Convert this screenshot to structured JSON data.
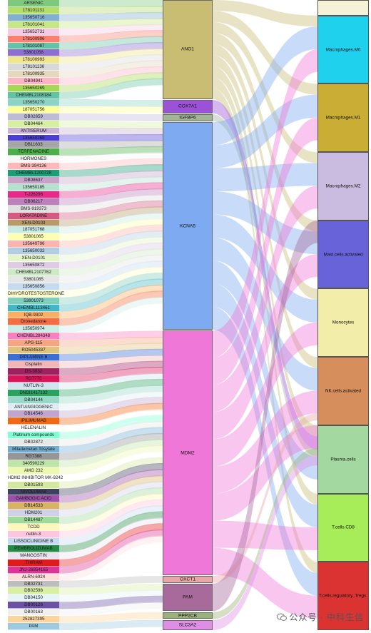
{
  "drugs": [
    {
      "label": "ARSENIC",
      "color": "#7fc97f"
    },
    {
      "label": "178101131",
      "color": "#b3de69"
    },
    {
      "label": "135650716",
      "color": "#80b1d3"
    },
    {
      "label": "178101041",
      "color": "#c6e784"
    },
    {
      "label": "135652731",
      "color": "#f4cae4"
    },
    {
      "label": "178100996",
      "color": "#fb8072"
    },
    {
      "label": "178101087",
      "color": "#66c2a5"
    },
    {
      "label": "53801058",
      "color": "#8e6fd1"
    },
    {
      "label": "178100993",
      "color": "#f0e68c"
    },
    {
      "label": "178101136",
      "color": "#d9d9d9"
    },
    {
      "label": "178100935",
      "color": "#e5d8bd"
    },
    {
      "label": "DB04941",
      "color": "#ffb3c6"
    },
    {
      "label": "135650269",
      "color": "#a6d854"
    },
    {
      "label": "CHEMBL2108184",
      "color": "#66c2a5"
    },
    {
      "label": "135650270",
      "color": "#8dd3c7"
    },
    {
      "label": "187051756",
      "color": "#ffff99"
    },
    {
      "label": "DB02659",
      "color": "#bebada"
    },
    {
      "label": "DB04464",
      "color": "#d4f0a0"
    },
    {
      "label": "ANTISERUM",
      "color": "#cab2d6"
    },
    {
      "label": "135650268",
      "color": "#4b3ed6"
    },
    {
      "label": "DB11633",
      "color": "#a6a6a6"
    },
    {
      "label": "TERFENADINE",
      "color": "#4daf4a"
    },
    {
      "label": "HORMONES",
      "color": "#f7f7f7"
    },
    {
      "label": "BMS-394136",
      "color": "#fdb9b9"
    },
    {
      "label": "CHEMBL1200728",
      "color": "#1b9e77"
    },
    {
      "label": "DB08637",
      "color": "#c8a2c8"
    },
    {
      "label": "135650185",
      "color": "#b3e2cd"
    },
    {
      "label": "T-226296",
      "color": "#e7298a"
    },
    {
      "label": "DB06217",
      "color": "#bc80bd"
    },
    {
      "label": "BMS-919373",
      "color": "#e0e0e0"
    },
    {
      "label": "LORATADINE",
      "color": "#d45a80"
    },
    {
      "label": "XEN-D0103",
      "color": "#b59a6a"
    },
    {
      "label": "187051768",
      "color": "#c7eae5"
    },
    {
      "label": "53801065",
      "color": "#ffffb3"
    },
    {
      "label": "135649796",
      "color": "#fbb4ae"
    },
    {
      "label": "135650032",
      "color": "#b3cde3"
    },
    {
      "label": "XEN-D0101",
      "color": "#e6f5c9"
    },
    {
      "label": "135650872",
      "color": "#decbe4"
    },
    {
      "label": "CHEMBL2107762",
      "color": "#ccebc5"
    },
    {
      "label": "53801085",
      "color": "#e6e6e6"
    },
    {
      "label": "135650856",
      "color": "#c6dbef"
    },
    {
      "label": "DIHYDROTESTOSTERONE",
      "color": "#ffffcc"
    },
    {
      "label": "53801073",
      "color": "#7fcdbb"
    },
    {
      "label": "CHEMBL113461",
      "color": "#41b6c4"
    },
    {
      "label": "IQB-9302",
      "color": "#fdae61"
    },
    {
      "label": "Dronedarone",
      "color": "#f46d43"
    },
    {
      "label": "135650974",
      "color": "#ccece6"
    },
    {
      "label": "CHEMBL284348",
      "color": "#f781bf"
    },
    {
      "label": "APG-115",
      "color": "#f4a582"
    },
    {
      "label": "RO5045337",
      "color": "#dfc27d"
    },
    {
      "label": "DIPLAMINE B",
      "color": "#3b6fd6"
    },
    {
      "label": "Cisplatin",
      "color": "#f2b6b6"
    },
    {
      "label": "DS-3032",
      "color": "#a02060"
    },
    {
      "label": "RG7775",
      "color": "#d9145a"
    },
    {
      "label": "NUTLIN-3",
      "color": "#d1e5f0"
    },
    {
      "label": "DNDI1417132",
      "color": "#2ca25f"
    },
    {
      "label": "DB04144",
      "color": "#99d8c9"
    },
    {
      "label": "ANTIANGIOGENIC",
      "color": "#e0ecf4"
    },
    {
      "label": "DB14546",
      "color": "#c2a5cf"
    },
    {
      "label": "IPILIMUMAB",
      "color": "#f16913"
    },
    {
      "label": "HELENALIN",
      "color": "#ffffff"
    },
    {
      "label": "Platinum compounds",
      "color": "#80ffd4"
    },
    {
      "label": "DB02872",
      "color": "#e8e8e8"
    },
    {
      "label": "Milademetan Tosylate",
      "color": "#74add1"
    },
    {
      "label": "RG7388",
      "color": "#969696"
    },
    {
      "label": "340590229",
      "color": "#bfe6a8"
    },
    {
      "label": "AMG 232",
      "color": "#edf8b1"
    },
    {
      "label": "HDM2 INHIBITOR MK-8242",
      "color": "#ffffff"
    },
    {
      "label": "DB01593",
      "color": "#d5e8a0"
    },
    {
      "label": "NIVOLUMAB",
      "color": "#3f3f5f"
    },
    {
      "label": "GAMBOGIC ACID",
      "color": "#9e4fa8"
    },
    {
      "label": "DB14533",
      "color": "#d8b365"
    },
    {
      "label": "HDM201",
      "color": "#d0d1e6"
    },
    {
      "label": "DB14487",
      "color": "#a1d99b"
    },
    {
      "label": "TCDD",
      "color": "#fff7bc"
    },
    {
      "label": "nutlin-3",
      "color": "#fcc5e0"
    },
    {
      "label": "LISSOCLINIDINE B",
      "color": "#c6dbef"
    },
    {
      "label": "PEMBROLIZUMAB",
      "color": "#238b45"
    },
    {
      "label": "MANGOSTIN",
      "color": "#ece2f0"
    },
    {
      "label": "THIRAM",
      "color": "#e31a1c"
    },
    {
      "label": "JNJ-26854165",
      "color": "#dd3497"
    },
    {
      "label": "ALRN-6924",
      "color": "#fde0dd"
    },
    {
      "label": "DB02731",
      "color": "#bdbdbd"
    },
    {
      "label": "DB02598",
      "color": "#d9f0a3"
    },
    {
      "label": "DB04150",
      "color": "#e5f5f9"
    },
    {
      "label": "DB00126",
      "color": "#6a51a3"
    },
    {
      "label": "DB00163",
      "color": "#f0f0f0"
    },
    {
      "label": "252827395",
      "color": "#fdd49e"
    },
    {
      "label": "PAM",
      "color": "#9ecae1"
    }
  ],
  "genes": [
    {
      "id": "ano1",
      "label": "ANO1",
      "color": "#c8bd72",
      "weight": 15.5
    },
    {
      "id": "cox7a1",
      "label": "COX7A1",
      "color": "#9c52d6",
      "weight": 2.1
    },
    {
      "id": "igfbp6",
      "label": "IGFBP6",
      "color": "#a2b597",
      "weight": 1.1
    },
    {
      "id": "kcna5",
      "label": "KCNA5",
      "color": "#7daaf0",
      "weight": 32.5
    },
    {
      "id": "mdm2",
      "label": "MDM2",
      "color": "#ef77d8",
      "weight": 38.2
    },
    {
      "id": "oxct1",
      "label": "OXCT1",
      "color": "#e8a6a6",
      "weight": 1.1
    },
    {
      "id": "pam",
      "label": "PAM",
      "color": "#a86a9a",
      "weight": 4.3
    },
    {
      "id": "ppp2cb",
      "label": "PPP2CB",
      "color": "#9bb17a",
      "weight": 1.1
    },
    {
      "id": "slc3a2",
      "label": "SLC3A2",
      "color": "#de8ee3",
      "weight": 1.6
    }
  ],
  "cells": [
    {
      "id": "top",
      "label": "",
      "color": "#f6f2d8",
      "weight": 2.4
    },
    {
      "id": "m0",
      "label": "Macrophages.M0",
      "color": "#1fd1ec",
      "weight": 10.6
    },
    {
      "id": "m1",
      "label": "Macrophages.M1",
      "color": "#c9ad35",
      "weight": 10.6
    },
    {
      "id": "m2",
      "label": "Macrophages.M2",
      "color": "#cabce0",
      "weight": 10.6
    },
    {
      "id": "mast",
      "label": "Mast.cells.activated",
      "color": "#6863d9",
      "weight": 10.6
    },
    {
      "id": "mono",
      "label": "Monocytes",
      "color": "#f3edaa",
      "weight": 10.6
    },
    {
      "id": "nk",
      "label": "NK.cells.activated",
      "color": "#d68f5c",
      "weight": 10.6
    },
    {
      "id": "plasma",
      "label": "Plasma.cells",
      "color": "#a3d9a0",
      "weight": 10.6
    },
    {
      "id": "cd8",
      "label": "T.cells.CD8",
      "color": "#a7ec59",
      "weight": 10.6
    },
    {
      "id": "tregs",
      "label": "T.cells.regulatory..Tregs.",
      "color": "#db3232",
      "weight": 10.6
    }
  ],
  "watermark": {
    "text": "公众号 · 中科生信"
  }
}
